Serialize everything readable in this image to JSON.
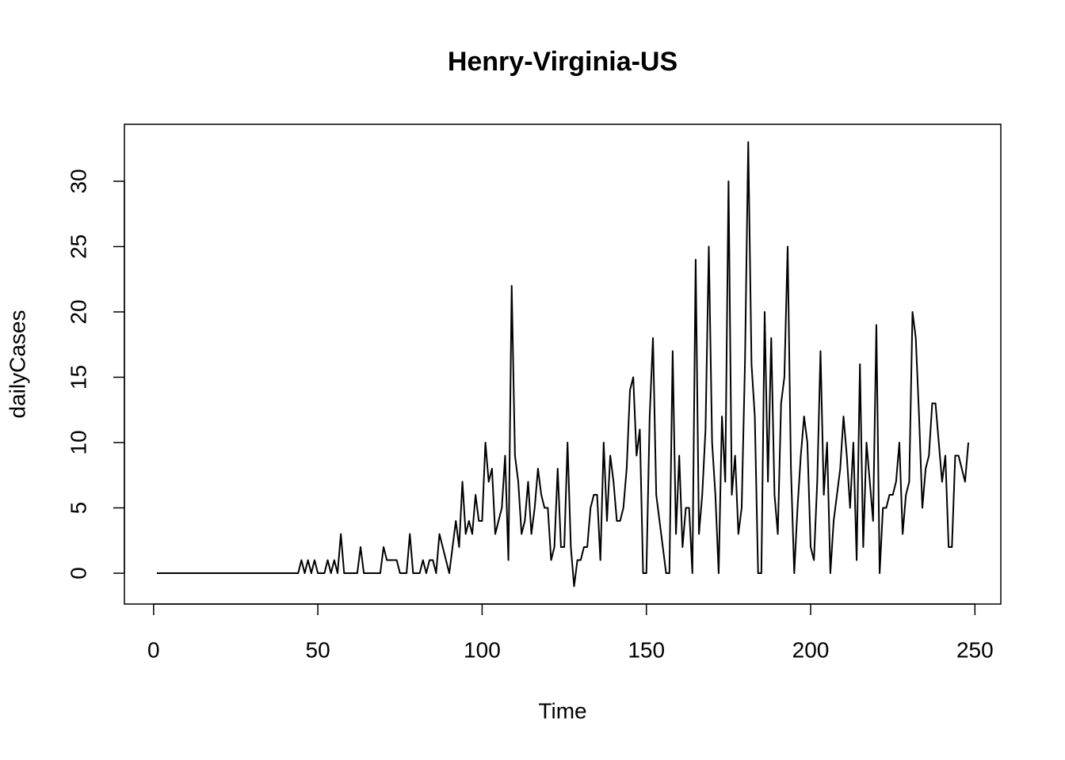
{
  "chart_data": {
    "type": "line",
    "title": "Henry-Virginia-US",
    "x_label": "Time",
    "y_label": "dailyCases",
    "color": "#000000",
    "x": [
      1,
      2,
      3,
      4,
      5,
      6,
      7,
      8,
      9,
      10,
      11,
      12,
      13,
      14,
      15,
      16,
      17,
      18,
      19,
      20,
      21,
      22,
      23,
      24,
      25,
      26,
      27,
      28,
      29,
      30,
      31,
      32,
      33,
      34,
      35,
      36,
      37,
      38,
      39,
      40,
      41,
      42,
      43,
      44,
      45,
      46,
      47,
      48,
      49,
      50,
      51,
      52,
      53,
      54,
      55,
      56,
      57,
      58,
      59,
      60,
      61,
      62,
      63,
      64,
      65,
      66,
      67,
      68,
      69,
      70,
      71,
      72,
      73,
      74,
      75,
      76,
      77,
      78,
      79,
      80,
      81,
      82,
      83,
      84,
      85,
      86,
      87,
      88,
      89,
      90,
      91,
      92,
      93,
      94,
      95,
      96,
      97,
      98,
      99,
      100,
      101,
      102,
      103,
      104,
      105,
      106,
      107,
      108,
      109,
      110,
      111,
      112,
      113,
      114,
      115,
      116,
      117,
      118,
      119,
      120,
      121,
      122,
      123,
      124,
      125,
      126,
      127,
      128,
      129,
      130,
      131,
      132,
      133,
      134,
      135,
      136,
      137,
      138,
      139,
      140,
      141,
      142,
      143,
      144,
      145,
      146,
      147,
      148,
      149,
      150,
      151,
      152,
      153,
      154,
      155,
      156,
      157,
      158,
      159,
      160,
      161,
      162,
      163,
      164,
      165,
      166,
      167,
      168,
      169,
      170,
      171,
      172,
      173,
      174,
      175,
      176,
      177,
      178,
      179,
      180,
      181,
      182,
      183,
      184,
      185,
      186,
      187,
      188,
      189,
      190,
      191,
      192,
      193,
      194,
      195,
      196,
      197,
      198,
      199,
      200,
      201,
      202,
      203,
      204,
      205,
      206,
      207,
      208,
      209,
      210,
      211,
      212,
      213,
      214,
      215,
      216,
      217,
      218,
      219,
      220,
      221,
      222,
      223,
      224,
      225,
      226,
      227,
      228,
      229,
      230,
      231,
      232,
      233,
      234,
      235,
      236,
      237,
      238,
      239,
      240,
      241,
      242,
      243,
      244,
      245,
      246,
      247,
      248
    ],
    "values": [
      0,
      0,
      0,
      0,
      0,
      0,
      0,
      0,
      0,
      0,
      0,
      0,
      0,
      0,
      0,
      0,
      0,
      0,
      0,
      0,
      0,
      0,
      0,
      0,
      0,
      0,
      0,
      0,
      0,
      0,
      0,
      0,
      0,
      0,
      0,
      0,
      0,
      0,
      0,
      0,
      0,
      0,
      0,
      0,
      1,
      0,
      1,
      0,
      1,
      0,
      0,
      0,
      1,
      0,
      1,
      0,
      3,
      0,
      0,
      0,
      0,
      0,
      2,
      0,
      0,
      0,
      0,
      0,
      0,
      2,
      1,
      1,
      1,
      1,
      0,
      0,
      0,
      3,
      0,
      0,
      0,
      1,
      0,
      1,
      1,
      0,
      3,
      2,
      1,
      0,
      2,
      4,
      2,
      7,
      3,
      4,
      3,
      6,
      4,
      4,
      10,
      7,
      8,
      3,
      4,
      5,
      9,
      1,
      22,
      9,
      7,
      3,
      4,
      7,
      3,
      5,
      8,
      6,
      5,
      5,
      1,
      2,
      8,
      2,
      2,
      10,
      2,
      -1,
      1,
      1,
      2,
      2,
      5,
      6,
      6,
      1,
      10,
      4,
      9,
      7,
      4,
      4,
      5,
      8,
      14,
      15,
      9,
      11,
      0,
      0,
      12,
      18,
      6,
      4,
      2,
      0,
      0,
      17,
      3,
      9,
      2,
      5,
      5,
      0,
      24,
      3,
      6,
      11,
      25,
      10,
      6,
      0,
      12,
      7,
      30,
      6,
      9,
      3,
      5,
      16,
      33,
      16,
      12,
      0,
      0,
      20,
      7,
      18,
      6,
      3,
      13,
      15,
      25,
      8,
      0,
      5,
      9,
      12,
      10,
      2,
      1,
      7,
      17,
      6,
      10,
      0,
      4,
      6,
      8,
      12,
      9,
      5,
      10,
      1,
      16,
      2,
      10,
      7,
      4,
      19,
      0,
      5,
      5,
      6,
      6,
      7,
      10,
      3,
      6,
      7,
      20,
      18,
      12,
      5,
      8,
      9,
      13,
      13,
      10,
      7,
      9,
      2,
      2,
      9,
      9,
      8,
      7,
      10
    ],
    "xlim": [
      -8.88,
      257.88
    ],
    "ylim": [
      -2.36,
      34.36
    ],
    "xticks": [
      0,
      50,
      100,
      150,
      200,
      250
    ],
    "yticks": [
      0,
      5,
      10,
      15,
      20,
      25,
      30
    ]
  }
}
